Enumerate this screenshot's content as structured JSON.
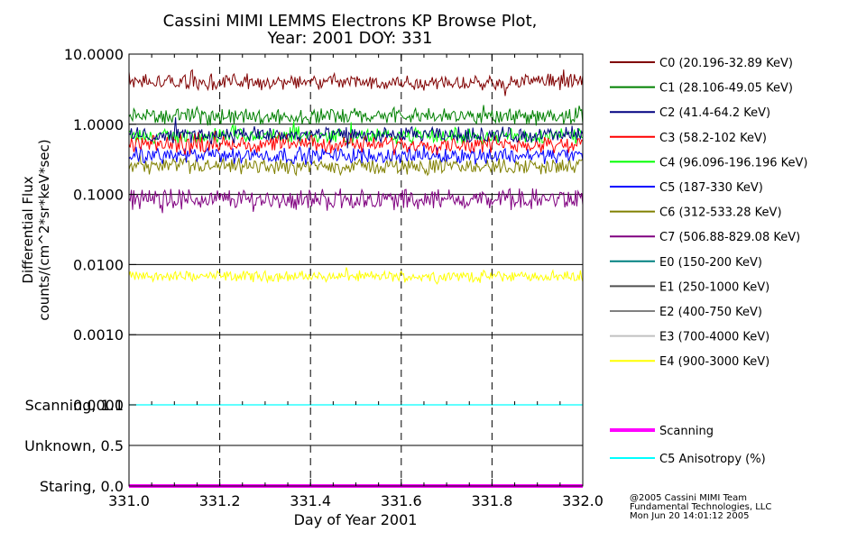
{
  "chart_data": {
    "type": "line",
    "title": [
      "Cassini MIMI LEMMS Electrons KP Browse Plot,",
      "Year: 2001 DOY: 331"
    ],
    "xlabel": "Day of Year 2001",
    "ylabel": [
      "Differential Flux",
      "counts/(cm^2*sr*keV*sec)"
    ],
    "x_ticks": [
      "331.0",
      "331.2",
      "331.4",
      "331.6",
      "331.8",
      "332.0"
    ],
    "xlim": [
      331.0,
      332.0
    ],
    "flux_panel": {
      "yscale": "log",
      "ylim": [
        0.0001,
        10.0
      ],
      "y_ticks": [
        "10.0000",
        "1.0000",
        "0.1000",
        "0.0100",
        "0.0010",
        "0.0001"
      ],
      "grid": "vertical dashed at 331.2, 331.4, 331.6, 331.8; horizontal at each decade"
    },
    "status_panel": {
      "ylim": [
        0.0,
        1.0
      ],
      "y_ticks": [
        "Scanning, 1.0",
        "Unknown, 0.5",
        "Staring, 0.0"
      ]
    },
    "series": [
      {
        "name": "C0 (20.196-32.89 KeV)",
        "color": "#800000",
        "level": 4.0,
        "variation": "noisy"
      },
      {
        "name": "C1 (28.106-49.05 KeV)",
        "color": "#008000",
        "level": 1.3,
        "variation": "noisy"
      },
      {
        "name": "C2 (41.4-64.2 KeV)",
        "color": "#000080",
        "level": 0.7,
        "variation": "noisy"
      },
      {
        "name": "C3 (58.2-102 KeV)",
        "color": "#ff0000",
        "level": 0.52,
        "variation": "noisy"
      },
      {
        "name": "C4 (96.096-196.196 KeV)",
        "color": "#00ff00",
        "level": 0.68,
        "variation": "noisy"
      },
      {
        "name": "C5 (187-330 KeV)",
        "color": "#0000ff",
        "level": 0.36,
        "variation": "noisy"
      },
      {
        "name": "C6 (312-533.28 KeV)",
        "color": "#808000",
        "level": 0.25,
        "variation": "noisy"
      },
      {
        "name": "C7 (506.88-829.08 KeV)",
        "color": "#800080",
        "level": 0.085,
        "variation": "noisy"
      },
      {
        "name": "E0 (150-200 KeV)",
        "color": "#008080",
        "level": null
      },
      {
        "name": "E1 (250-1000 KeV)",
        "color": "#505050",
        "level": null
      },
      {
        "name": "E2 (400-750 KeV)",
        "color": "#808080",
        "level": null
      },
      {
        "name": "E3 (700-4000 KeV)",
        "color": "#c0c0c0",
        "level": null
      },
      {
        "name": "E4 (900-3000 KeV)",
        "color": "#ffff00",
        "level": 0.0068,
        "variation": "noisy"
      }
    ],
    "status_series": [
      {
        "name": "Scanning",
        "color": "#ff00ff",
        "level": 0.0
      },
      {
        "name": "C5 Anisotropy (%)",
        "color": "#00ffff",
        "level": 1.0
      }
    ]
  },
  "credit": [
    "@2005 Cassini MIMI Team",
    "Fundamental Technologies, LLC",
    "Mon Jun 20 14:01:12 2005"
  ]
}
